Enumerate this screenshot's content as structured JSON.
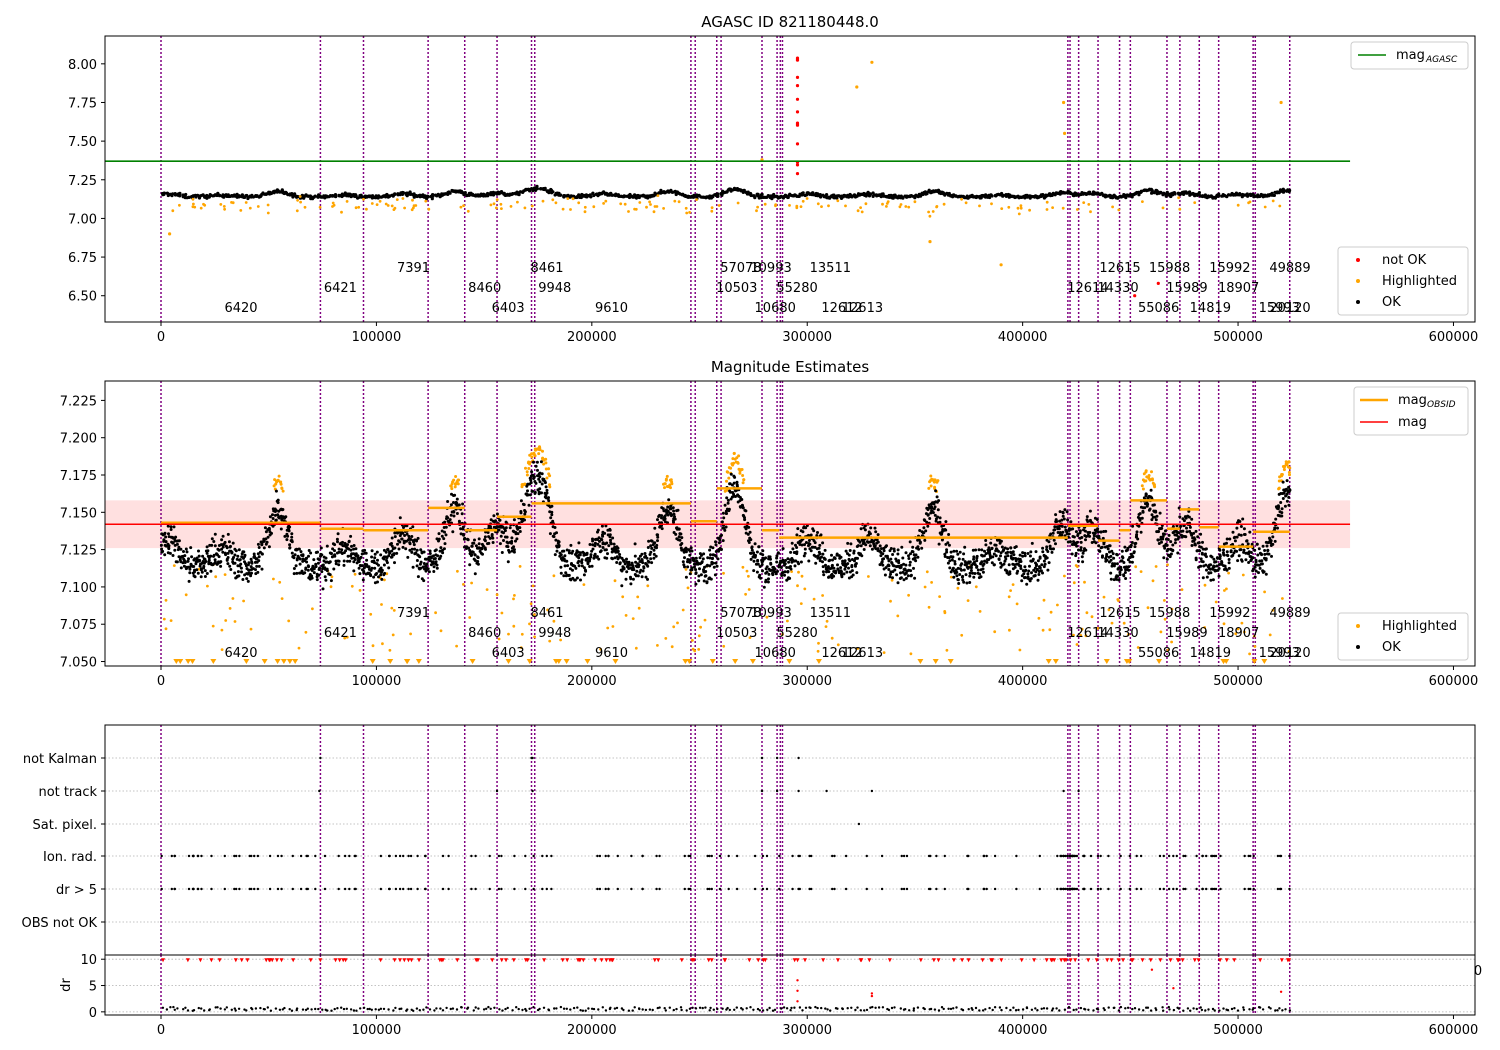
{
  "figure": {
    "title_top": "AGASC ID 821180448.0",
    "title_mid": "Magnitude Estimates"
  },
  "colors": {
    "ok": "#000000",
    "highlighted": "#ffa500",
    "not_ok": "#ff0000",
    "mag_agasc_line": "#008000",
    "mag_line": "#ff0000",
    "obs_divider": "#800080",
    "band_fill": "#ffcccc",
    "flag_grid": "#b0b0b0"
  },
  "chart_data": [
    {
      "type": "scatter",
      "title": "AGASC ID 821180448.0",
      "xlim": [
        -26000,
        610000
      ],
      "ylim": [
        6.33,
        8.18
      ],
      "xticks": [
        0,
        100000,
        200000,
        300000,
        400000,
        500000,
        600000
      ],
      "yticks": [
        6.5,
        6.75,
        7.0,
        7.25,
        7.5,
        7.75,
        8.0
      ],
      "mag_agasc": 7.37,
      "mag_agasc_x_range": [
        -26000,
        552000
      ],
      "legend": {
        "top_right": [
          {
            "name": "mag",
            "sub": "AGASC"
          }
        ],
        "bottom_right": [
          {
            "name": "not OK"
          },
          {
            "name": "Highlighted"
          },
          {
            "name": "OK"
          }
        ]
      }
    },
    {
      "type": "scatter",
      "title": "Magnitude Estimates",
      "xlim": [
        -26000,
        610000
      ],
      "ylim": [
        7.047,
        7.238
      ],
      "xticks": [
        0,
        100000,
        200000,
        300000,
        400000,
        500000,
        600000
      ],
      "yticks": [
        7.05,
        7.075,
        7.1,
        7.125,
        7.15,
        7.175,
        7.2,
        7.225
      ],
      "mag": 7.142,
      "mag_band": [
        7.126,
        7.158
      ],
      "legend": {
        "top_right": [
          {
            "name": "mag",
            "sub": "OBSID"
          },
          {
            "name": "mag"
          }
        ],
        "bottom_right": [
          {
            "name": "Highlighted"
          },
          {
            "name": "OK"
          }
        ]
      },
      "obs_mags": [
        {
          "x0": 0,
          "x1": 74000,
          "mag": 7.143
        },
        {
          "x0": 74000,
          "x1": 94000,
          "mag": 7.139
        },
        {
          "x0": 94000,
          "x1": 124000,
          "mag": 7.138
        },
        {
          "x0": 124000,
          "x1": 141000,
          "mag": 7.153
        },
        {
          "x0": 141000,
          "x1": 156000,
          "mag": 7.138
        },
        {
          "x0": 156000,
          "x1": 172000,
          "mag": 7.147
        },
        {
          "x0": 172000,
          "x1": 246000,
          "mag": 7.156
        },
        {
          "x0": 246000,
          "x1": 258000,
          "mag": 7.144
        },
        {
          "x0": 258000,
          "x1": 279000,
          "mag": 7.166
        },
        {
          "x0": 279000,
          "x1": 287000,
          "mag": 7.138
        },
        {
          "x0": 287000,
          "x1": 421000,
          "mag": 7.133
        },
        {
          "x0": 421000,
          "x1": 435000,
          "mag": 7.141
        },
        {
          "x0": 435000,
          "x1": 445000,
          "mag": 7.131
        },
        {
          "x0": 445000,
          "x1": 450000,
          "mag": 7.138
        },
        {
          "x0": 450000,
          "x1": 467000,
          "mag": 7.158
        },
        {
          "x0": 467000,
          "x1": 473000,
          "mag": 7.139
        },
        {
          "x0": 473000,
          "x1": 482000,
          "mag": 7.152
        },
        {
          "x0": 482000,
          "x1": 491000,
          "mag": 7.14
        },
        {
          "x0": 491000,
          "x1": 507000,
          "mag": 7.127
        },
        {
          "x0": 507000,
          "x1": 524000,
          "mag": 7.137
        }
      ]
    },
    {
      "type": "scatter",
      "title": "",
      "xlim": [
        -26000,
        610000
      ],
      "flag_rows": [
        "not Kalman",
        "not track",
        "Sat. pixel.",
        "Ion. rad.",
        "dr > 5",
        "OBS not OK"
      ],
      "dr_ylim": [
        -0.6,
        10.8
      ],
      "dr_yticks": [
        0,
        5,
        10
      ],
      "dr_ylabel": "dr",
      "stray_tick": "0",
      "xticks": [
        0,
        100000,
        200000,
        300000,
        400000,
        500000,
        600000
      ]
    }
  ],
  "obsids": [
    {
      "x": 0,
      "label": "6420",
      "row": 3
    },
    {
      "x": 74000,
      "label": "6421",
      "row": 2
    },
    {
      "x": 94000,
      "label": "7391",
      "row": 1
    },
    {
      "x": 124000,
      "label": "6403",
      "row": 3
    },
    {
      "x": 141000,
      "label": "8460",
      "row": 2
    },
    {
      "x": 156000,
      "label": "8461",
      "row": 1
    },
    {
      "x": 172000,
      "label": "9610",
      "row": 3
    },
    {
      "x": 173500,
      "label": "9948",
      "row": 2
    },
    {
      "x": 246000,
      "label": "57078",
      "row": 1
    },
    {
      "x": 248000,
      "label": "10680",
      "row": 3
    },
    {
      "x": 258000,
      "label": "10503",
      "row": 2
    },
    {
      "x": 260000,
      "label": "10993",
      "row": 1
    },
    {
      "x": 279000,
      "label": "12612",
      "row": 3
    },
    {
      "x": 286000,
      "label": "55280",
      "row": 2
    },
    {
      "x": 287500,
      "label": "13511",
      "row": 1
    },
    {
      "x": 288500,
      "label": "12613",
      "row": 3
    },
    {
      "x": 421000,
      "label": "12614",
      "row": 2
    },
    {
      "x": 422000,
      "label": "12615",
      "row": 1
    },
    {
      "x": 426000,
      "label": "55086",
      "row": 3
    },
    {
      "x": 435000,
      "label": "14330",
      "row": 2
    },
    {
      "x": 445000,
      "label": "15988",
      "row": 1
    },
    {
      "x": 450000,
      "label": "14819",
      "row": 3
    },
    {
      "x": 467000,
      "label": "15989",
      "row": 2
    },
    {
      "x": 473000,
      "label": "15992",
      "row": 1
    },
    {
      "x": 482000,
      "label": "15993",
      "row": 3
    },
    {
      "x": 491000,
      "label": "18907",
      "row": 2
    },
    {
      "x": 507000,
      "label": "49889",
      "row": 1
    },
    {
      "x": 508000,
      "label": "20120",
      "row": 3
    },
    {
      "x": 524000,
      "label": "",
      "row": 0
    }
  ]
}
